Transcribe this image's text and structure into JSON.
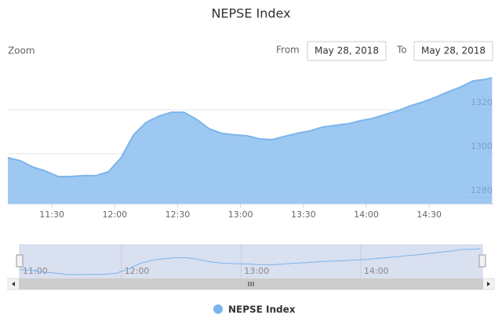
{
  "chart_data": {
    "type": "area",
    "title": "NEPSE Index",
    "zoom_label": "Zoom",
    "from_label": "From",
    "from_value": "May 28, 2018",
    "to_label": "To",
    "to_value": "May 28, 2018",
    "x": [
      "11:09",
      "11:15",
      "11:21",
      "11:27",
      "11:33",
      "11:39",
      "11:45",
      "11:51",
      "11:57",
      "12:03",
      "12:09",
      "12:15",
      "12:21",
      "12:27",
      "12:33",
      "12:39",
      "12:45",
      "12:51",
      "12:57",
      "13:03",
      "13:09",
      "13:15",
      "13:21",
      "13:27",
      "13:33",
      "13:39",
      "13:45",
      "13:51",
      "13:57",
      "14:03",
      "14:09",
      "14:15",
      "14:21",
      "14:27",
      "14:33",
      "14:39",
      "14:45",
      "14:51",
      "14:57",
      "15:00"
    ],
    "series": [
      {
        "name": "NEPSE Index",
        "color": "#7cb5ec",
        "values": [
          1298.2,
          1296.8,
          1293.9,
          1292.1,
          1289.6,
          1289.6,
          1290,
          1290,
          1291.8,
          1298.2,
          1308.6,
          1314.3,
          1317.1,
          1318.9,
          1318.9,
          1315.7,
          1311.4,
          1309.3,
          1308.6,
          1308.2,
          1306.8,
          1306.4,
          1307.9,
          1309.3,
          1310.4,
          1312.1,
          1312.9,
          1313.6,
          1315,
          1316.1,
          1317.9,
          1319.6,
          1321.8,
          1323.6,
          1325.7,
          1328.2,
          1330.4,
          1333.2,
          1333.9,
          1334.6
        ]
      }
    ],
    "xlim": [
      "11:09",
      "15:01"
    ],
    "xticks": [
      "11:30",
      "12:00",
      "12:30",
      "13:00",
      "13:30",
      "14:00",
      "14:30"
    ],
    "ylim": [
      1277.1,
      1338.6
    ],
    "yticks": [
      1280,
      1300,
      1320
    ],
    "navigator_xticks": [
      "11:00",
      "12:00",
      "13:00",
      "14:00"
    ],
    "grid": true
  }
}
